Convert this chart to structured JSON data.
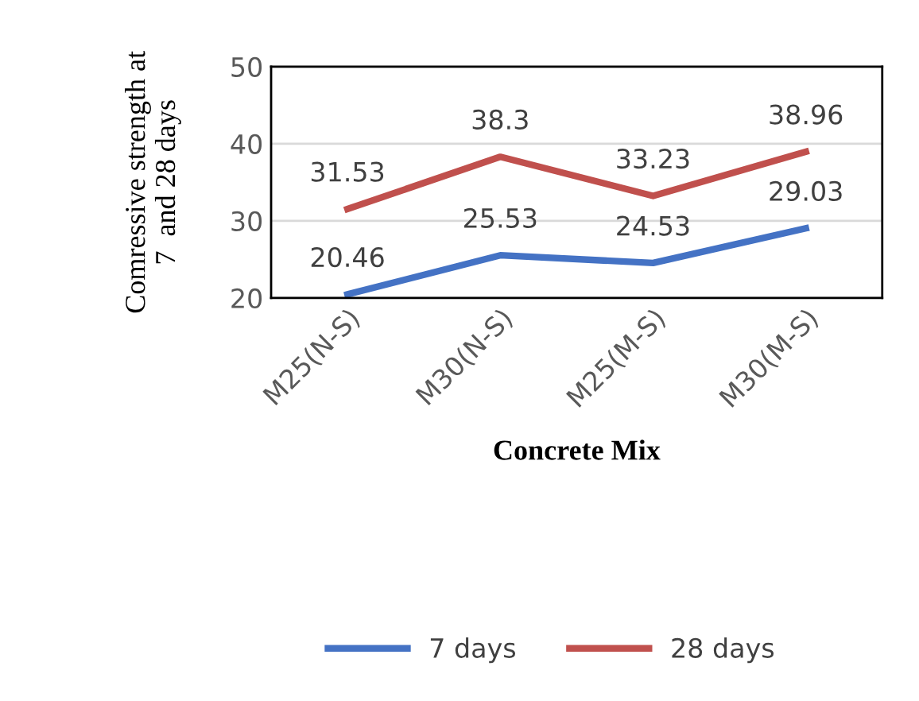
{
  "chart_data": {
    "type": "line",
    "categories": [
      "M25(N-S)",
      "M30(N-S)",
      "M25(M-S)",
      "M30(M-S)"
    ],
    "series": [
      {
        "name": "7 days",
        "color": "#4472c4",
        "values": [
          20.46,
          25.53,
          24.53,
          29.03
        ]
      },
      {
        "name": "28 days",
        "color": "#c0504d",
        "values": [
          31.53,
          38.3,
          33.23,
          38.96
        ]
      }
    ],
    "xlabel": "Concrete Mix",
    "ylabel": "Comressive strength at\n7  and 28 days",
    "ylim": [
      20,
      50
    ],
    "yticks": [
      20,
      30,
      40,
      50
    ],
    "grid": "y",
    "legend": "bottom",
    "data_labels": true,
    "marker": "none",
    "line_style": "solid"
  }
}
